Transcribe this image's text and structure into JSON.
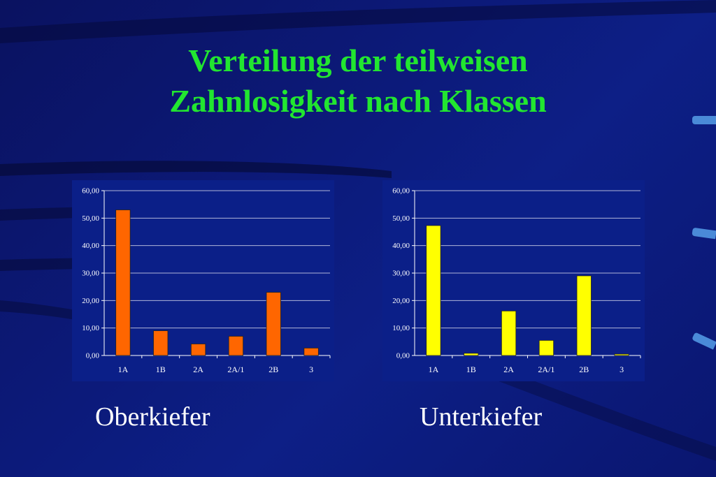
{
  "slide": {
    "title_line1": "Verteilung der teilweisen",
    "title_line2": "Zahnlosigkeit nach Klassen",
    "caption_left": "Oberkiefer",
    "caption_right": "Unterkiefer"
  },
  "colors": {
    "title": "#22e630",
    "bar_left": "#ff6600",
    "bar_right": "#ffff00",
    "plot_bg": "#0b1f88",
    "grid": "#b0b6d8"
  },
  "chart_data": [
    {
      "type": "bar",
      "categories": [
        "1A",
        "1B",
        "2A",
        "2A/1",
        "2B",
        "3"
      ],
      "values": [
        53.0,
        9.0,
        4.2,
        7.0,
        23.0,
        2.7
      ],
      "ylim": [
        0,
        60
      ],
      "yticks": [
        "0,00",
        "10,00",
        "20,00",
        "30,00",
        "40,00",
        "50,00",
        "60,00"
      ],
      "grid": true,
      "color": "#ff6600"
    },
    {
      "type": "bar",
      "categories": [
        "1A",
        "1B",
        "2A",
        "2A/1",
        "2B",
        "3"
      ],
      "values": [
        47.3,
        0.8,
        16.2,
        5.5,
        29.0,
        0.5
      ],
      "ylim": [
        0,
        60
      ],
      "yticks": [
        "0,00",
        "10,00",
        "20,00",
        "30,00",
        "40,00",
        "50,00",
        "60,00"
      ],
      "grid": true,
      "color": "#ffff00"
    }
  ]
}
